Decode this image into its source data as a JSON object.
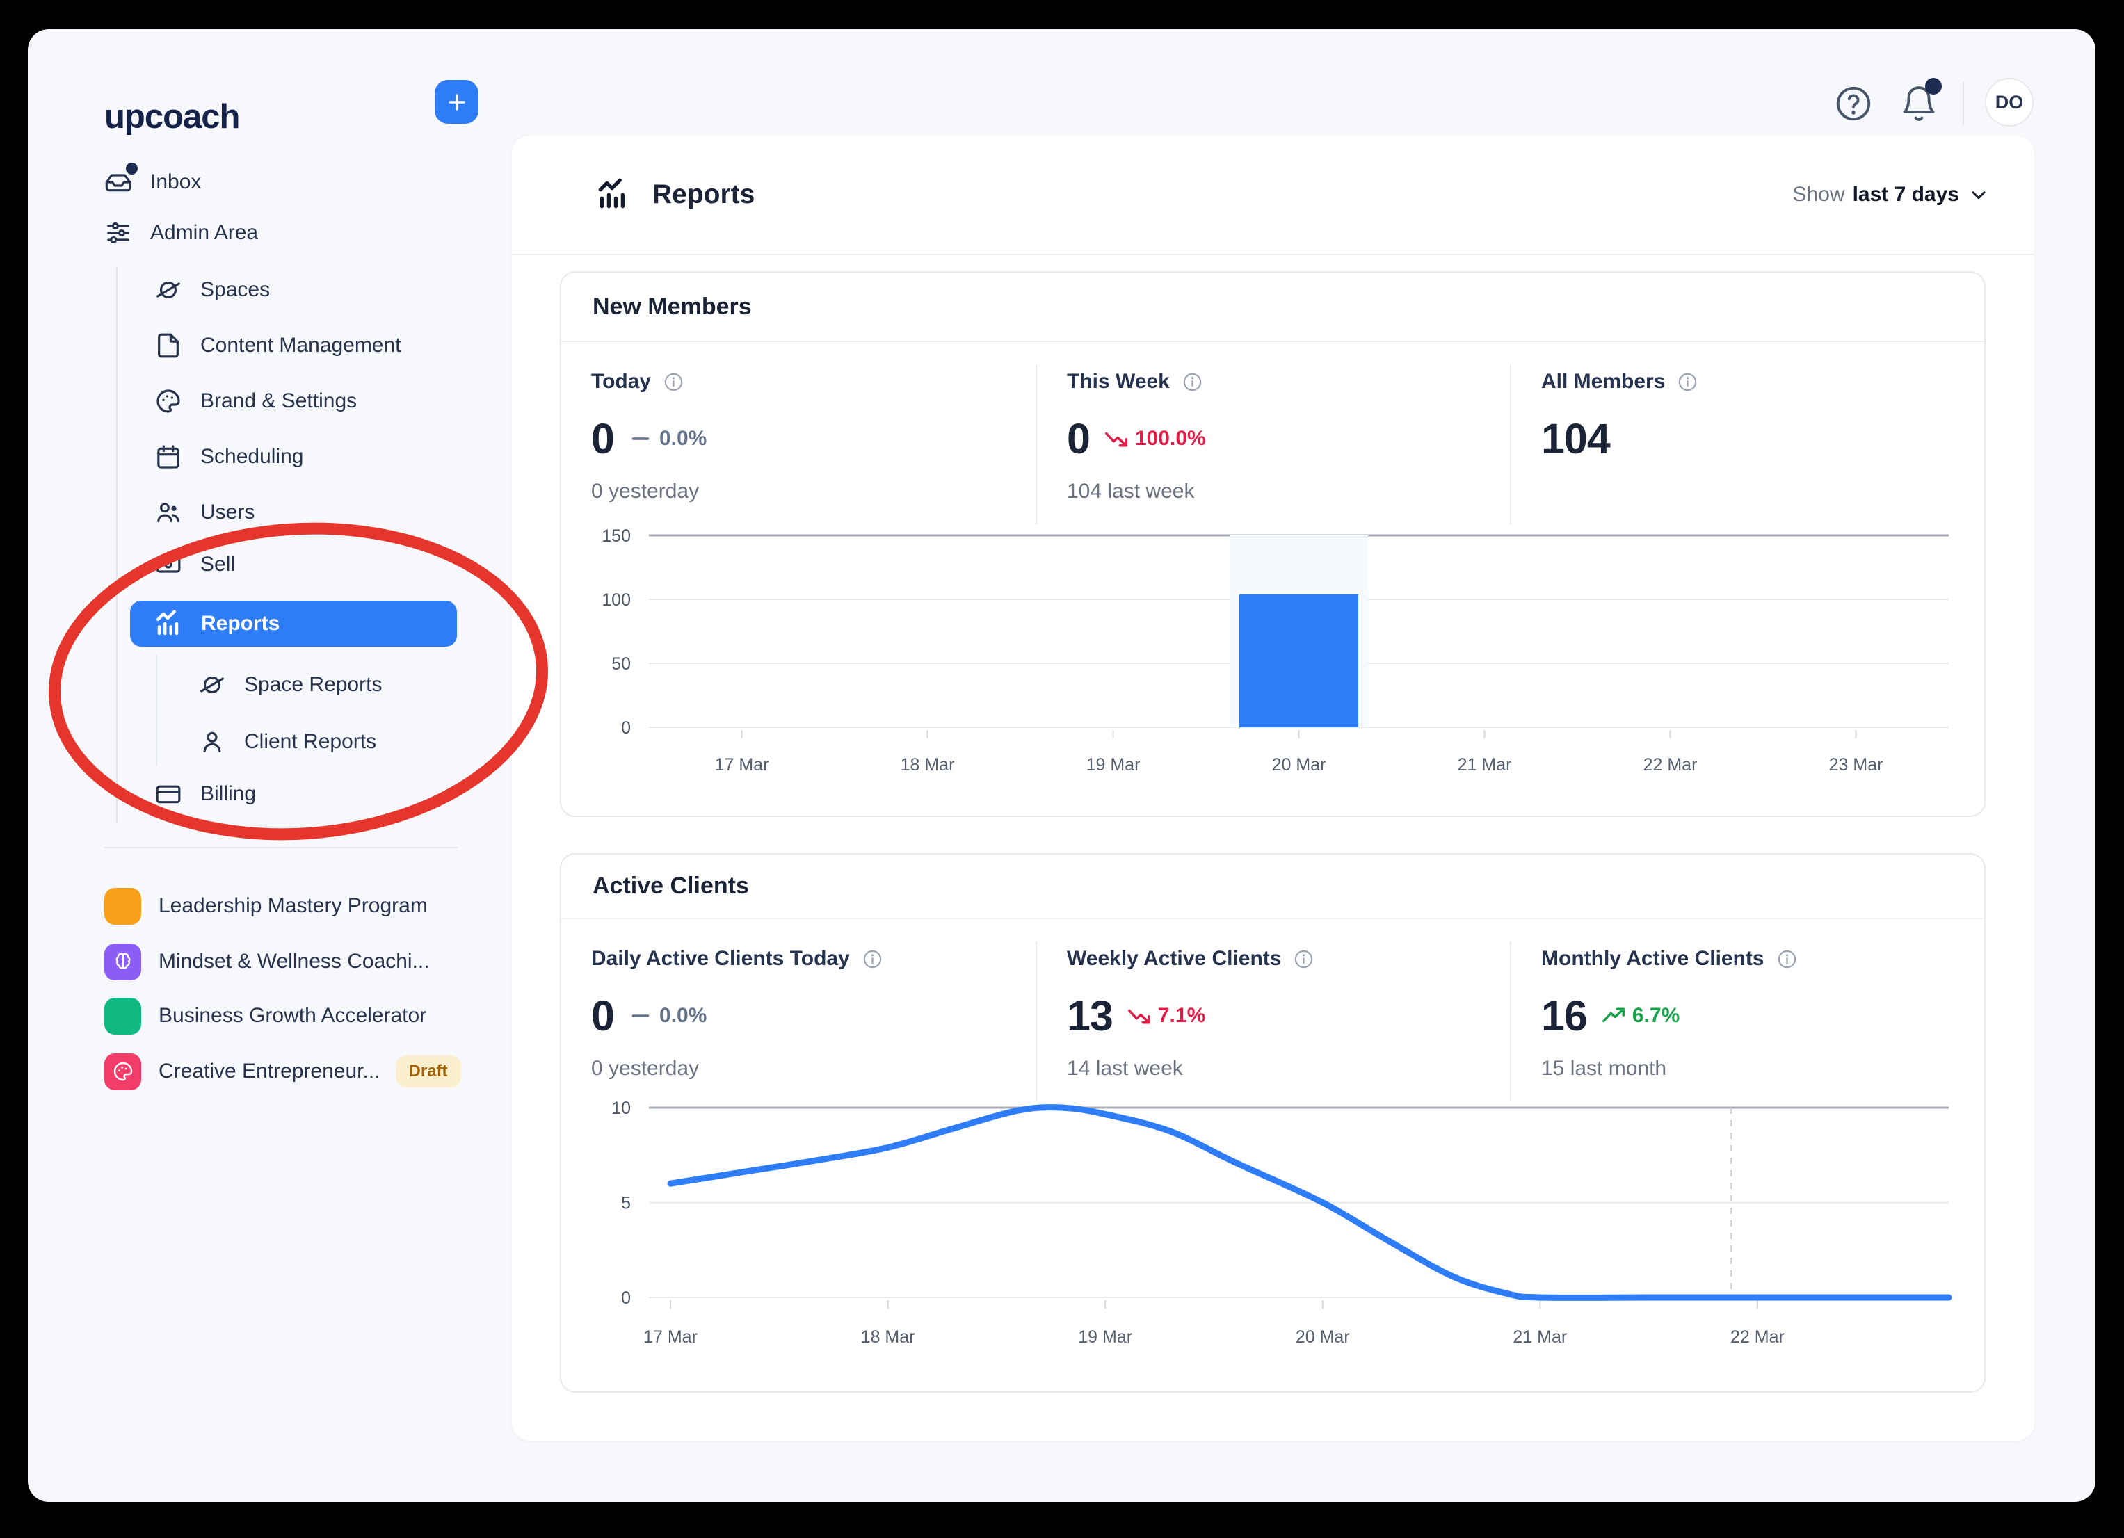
{
  "brand": {
    "logo": "upcoach"
  },
  "topbar": {
    "avatar_initials": "DO"
  },
  "sidebar": {
    "inbox": "Inbox",
    "admin_area": "Admin Area",
    "admin_children": [
      "Spaces",
      "Content Management",
      "Brand & Settings",
      "Scheduling",
      "Users",
      "Sell"
    ],
    "reports": "Reports",
    "reports_children": [
      "Space Reports",
      "Client Reports"
    ],
    "billing": "Billing",
    "programs": [
      {
        "name": "Leadership Mastery Program",
        "color": "#F9A01B",
        "icon": "square-icon"
      },
      {
        "name": "Mindset & Wellness Coachi...",
        "color": "#8B5CF6",
        "icon": "brain-icon"
      },
      {
        "name": "Business Growth Accelerator",
        "color": "#10B981",
        "icon": "square-icon"
      },
      {
        "name": "Creative Entrepreneur...",
        "color": "#F23D6B",
        "icon": "palette-icon",
        "badge": "Draft"
      }
    ]
  },
  "header": {
    "title": "Reports",
    "range_prefix": "Show",
    "range_value": "last 7 days"
  },
  "cards": {
    "new_members": {
      "title": "New Members",
      "stats": [
        {
          "label": "Today",
          "value": "0",
          "trend": "flat",
          "trend_text": "0.0%",
          "sub": "0 yesterday"
        },
        {
          "label": "This Week",
          "value": "0",
          "trend": "down",
          "trend_text": "100.0%",
          "sub": "104 last week"
        },
        {
          "label": "All Members",
          "value": "104"
        }
      ]
    },
    "active_clients": {
      "title": "Active Clients",
      "stats": [
        {
          "label": "Daily Active Clients Today",
          "value": "0",
          "trend": "flat",
          "trend_text": "0.0%",
          "sub": "0 yesterday"
        },
        {
          "label": "Weekly Active Clients",
          "value": "13",
          "trend": "down",
          "trend_text": "7.1%",
          "sub": "14 last week"
        },
        {
          "label": "Monthly Active Clients",
          "value": "16",
          "trend": "up",
          "trend_text": "6.7%",
          "sub": "15 last month"
        }
      ]
    }
  },
  "colors": {
    "accent": "#2E7CF6",
    "negative": "#E11D48",
    "positive": "#16A34A",
    "annotation_red": "#E5352C",
    "bar_highlight": "#F7FAFD",
    "grid_light": "#E7E9ED",
    "grid_dark": "#A6ABB5"
  },
  "chart_data": [
    {
      "type": "bar",
      "title": "New Members",
      "categories": [
        "17 Mar",
        "18 Mar",
        "19 Mar",
        "20 Mar",
        "21 Mar",
        "22 Mar",
        "23 Mar"
      ],
      "values": [
        0,
        0,
        0,
        104,
        0,
        0,
        0
      ],
      "xlabel": "",
      "ylabel": "",
      "ylim": [
        0,
        150
      ],
      "yticks": [
        0,
        50,
        100,
        150
      ],
      "grid": true,
      "legend": false,
      "highlight_index": 3
    },
    {
      "type": "line",
      "title": "Active Clients",
      "x_ticks": [
        "17 Mar",
        "18 Mar",
        "19 Mar",
        "20 Mar",
        "21 Mar",
        "22 Mar"
      ],
      "x_tick_days": [
        17,
        18,
        19,
        20,
        21,
        22
      ],
      "x_range": [
        17,
        22.88
      ],
      "points": [
        [
          17,
          6
        ],
        [
          17.33,
          6.6
        ],
        [
          17.66,
          7.2
        ],
        [
          18,
          7.9
        ],
        [
          18.3,
          8.9
        ],
        [
          18.6,
          9.85
        ],
        [
          18.8,
          10
        ],
        [
          19,
          9.65
        ],
        [
          19.3,
          8.75
        ],
        [
          19.6,
          7.1
        ],
        [
          20,
          5
        ],
        [
          20.3,
          3
        ],
        [
          20.6,
          1.1
        ],
        [
          20.85,
          0.2
        ],
        [
          21,
          0
        ],
        [
          21.5,
          0
        ],
        [
          22,
          0
        ],
        [
          22.5,
          0
        ],
        [
          22.88,
          0
        ]
      ],
      "xlabel": "",
      "ylabel": "",
      "ylim": [
        0,
        10
      ],
      "yticks": [
        0,
        5,
        10
      ],
      "grid": true,
      "legend": false,
      "dashed_x": 21.88
    }
  ]
}
